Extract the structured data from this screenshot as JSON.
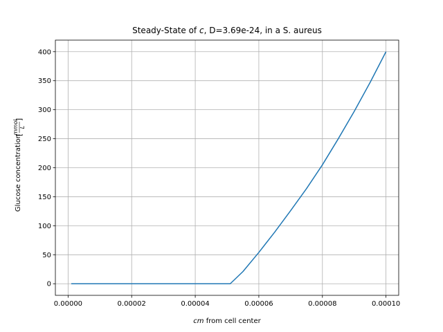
{
  "chart_data": {
    "type": "line",
    "title_parts": {
      "before": "Steady-State of ",
      "var": "c",
      "after": ", D=3.69e-24, in a S. aureus"
    },
    "xlabel_parts": {
      "var": "cm",
      "after": " from cell center"
    },
    "ylabel_parts": {
      "text": "Glucose concentration ",
      "unit_num": "mmol",
      "unit_den": "L"
    },
    "xlim": [
      -4e-06,
      0.000104
    ],
    "ylim": [
      -20,
      420
    ],
    "x_ticks": [
      0,
      2e-05,
      4e-05,
      6e-05,
      8e-05,
      0.0001
    ],
    "x_tick_labels": [
      "0.00000",
      "0.00002",
      "0.00004",
      "0.00006",
      "0.00008",
      "0.00010"
    ],
    "y_ticks": [
      0,
      50,
      100,
      150,
      200,
      250,
      300,
      350,
      400
    ],
    "y_tick_labels": [
      "0",
      "50",
      "100",
      "150",
      "200",
      "250",
      "300",
      "350",
      "400"
    ],
    "grid": true,
    "series": [
      {
        "color": "#1f77b4",
        "x": [
          1e-06,
          1e-05,
          2e-05,
          3e-05,
          4e-05,
          5e-05,
          5.1e-05,
          5.5e-05,
          6e-05,
          6.5e-05,
          7e-05,
          7.5e-05,
          8e-05,
          8.5e-05,
          9e-05,
          9.5e-05,
          0.0001
        ],
        "y": [
          0,
          0,
          0,
          0,
          0,
          0,
          0,
          21,
          54,
          89,
          126,
          164,
          205,
          250,
          297,
          347,
          400
        ]
      }
    ]
  }
}
